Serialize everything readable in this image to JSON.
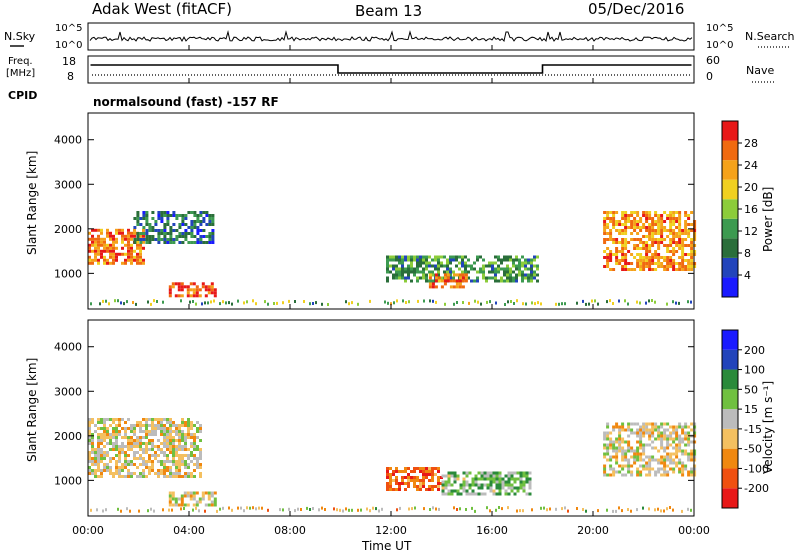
{
  "header": {
    "station": "Adak West (fitACF)",
    "beam": "Beam 13",
    "date": "05/Dec/2016"
  },
  "panels": {
    "nsky_label": "N.Sky",
    "nsearch_label": "N.Search",
    "freq_label_1": "Freq.",
    "freq_label_2": "[MHz]",
    "nave_label": "Nave",
    "cpid_label": "CPID",
    "cpid_text": "normalsound (fast) -157 RF",
    "ytick_1e5_left": "10^5",
    "ytick_1e0_left": "10^0",
    "ytick_1e5_right": "10^5",
    "ytick_1e0_right": "10^0",
    "freq_ticks": [
      "18",
      "8"
    ],
    "nave_ticks": [
      "60",
      "0"
    ]
  },
  "colors": {
    "power": [
      "#1a1aff",
      "#2244bb",
      "#2a6e3a",
      "#3c9a50",
      "#8ccc3a",
      "#f0d020",
      "#f5a21a",
      "#f06a10",
      "#e81818"
    ],
    "velocity": [
      "#e81818",
      "#f05010",
      "#f08810",
      "#f4c060",
      "#bcbcbc",
      "#70c040",
      "#2a8a3a",
      "#2244bb",
      "#1a1aff"
    ]
  },
  "chart_data": [
    {
      "type": "heatmap",
      "name": "power",
      "ylabel": "Slant Range [km]",
      "colorbar_label": "Power [dB]",
      "colorbar_ticks": [
        "28",
        "24",
        "20",
        "16",
        "12",
        "8",
        "4"
      ],
      "ylim": [
        200,
        4600
      ],
      "yticks": [
        "4000",
        "3000",
        "2000",
        "1000"
      ],
      "xlim": [
        0,
        24
      ],
      "xticks": [
        "00:00",
        "04:00",
        "08:00",
        "12:00",
        "16:00",
        "20:00",
        "00:00"
      ],
      "regions": [
        {
          "t": [
            0.0,
            2.2
          ],
          "r": [
            1200,
            2000
          ],
          "level": 0.8
        },
        {
          "t": [
            1.8,
            5.0
          ],
          "r": [
            1700,
            2400
          ],
          "level": 0.25
        },
        {
          "t": [
            3.2,
            5.1
          ],
          "r": [
            500,
            800
          ],
          "level": 0.85
        },
        {
          "t": [
            11.8,
            17.8
          ],
          "r": [
            800,
            1400
          ],
          "level": 0.35
        },
        {
          "t": [
            13.5,
            15.0
          ],
          "r": [
            700,
            1000
          ],
          "level": 0.8
        },
        {
          "t": [
            20.4,
            24.0
          ],
          "r": [
            1100,
            2400
          ],
          "level": 0.75
        }
      ]
    },
    {
      "type": "heatmap",
      "name": "velocity",
      "ylabel": "Slant Range [km]",
      "xlabel": "Time UT",
      "colorbar_label": "Velocity [m s⁻¹]",
      "colorbar_ticks": [
        "200",
        "100",
        "50",
        "15",
        "-15",
        "-50",
        "-100",
        "-200"
      ],
      "ylim": [
        200,
        4600
      ],
      "yticks": [
        "4000",
        "3000",
        "2000",
        "1000"
      ],
      "xlim": [
        0,
        24
      ],
      "xticks": [
        "00:00",
        "04:00",
        "08:00",
        "12:00",
        "16:00",
        "20:00",
        "00:00"
      ],
      "regions": [
        {
          "t": [
            0.0,
            4.5
          ],
          "r": [
            1100,
            2400
          ],
          "level": 0.45
        },
        {
          "t": [
            3.2,
            5.1
          ],
          "r": [
            450,
            750
          ],
          "level": 0.45
        },
        {
          "t": [
            11.8,
            14.0
          ],
          "r": [
            800,
            1300
          ],
          "level": 0.2
        },
        {
          "t": [
            14.0,
            17.5
          ],
          "r": [
            700,
            1200
          ],
          "level": 0.6
        },
        {
          "t": [
            20.4,
            24.0
          ],
          "r": [
            1100,
            2300
          ],
          "level": 0.45
        }
      ]
    }
  ]
}
